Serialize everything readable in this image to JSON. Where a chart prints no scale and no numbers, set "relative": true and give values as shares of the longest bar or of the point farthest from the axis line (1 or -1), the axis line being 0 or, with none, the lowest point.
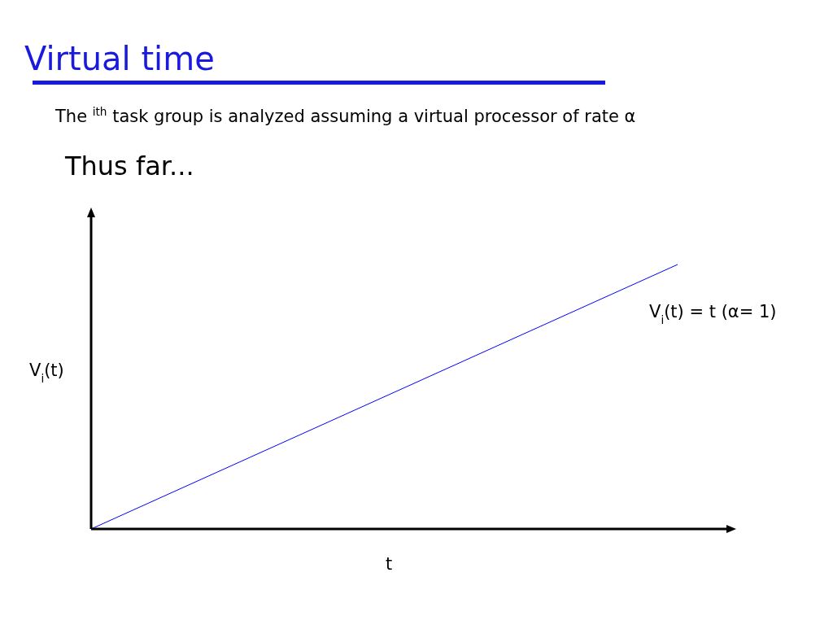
{
  "chart_data": {
    "type": "line",
    "title": "Virtual time",
    "subtitle": "The $^{ith}$ task group is analyzed assuming a virtual  processor of rate α",
    "annotations": [
      "Thus far..."
    ],
    "xlabel": "t",
    "ylabel": "V$_{i}$(t)",
    "categories": [
      null,
      null
    ],
    "relative": true,
    "series": [
      {
        "name": "V$_{i}$(t) = t (α= 1)",
        "color": "#0000ff",
        "values": [
          0,
          1
        ]
      }
    ]
  }
}
